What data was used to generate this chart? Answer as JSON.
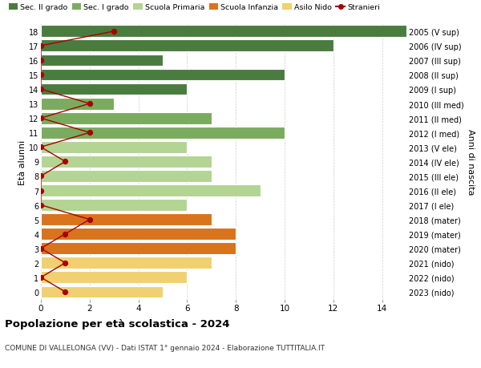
{
  "ages": [
    18,
    17,
    16,
    15,
    14,
    13,
    12,
    11,
    10,
    9,
    8,
    7,
    6,
    5,
    4,
    3,
    2,
    1,
    0
  ],
  "right_labels": [
    "2005 (V sup)",
    "2006 (IV sup)",
    "2007 (III sup)",
    "2008 (II sup)",
    "2009 (I sup)",
    "2010 (III med)",
    "2011 (II med)",
    "2012 (I med)",
    "2013 (V ele)",
    "2014 (IV ele)",
    "2015 (III ele)",
    "2016 (II ele)",
    "2017 (I ele)",
    "2018 (mater)",
    "2019 (mater)",
    "2020 (mater)",
    "2021 (nido)",
    "2022 (nido)",
    "2023 (nido)"
  ],
  "bar_values": [
    15,
    12,
    5,
    10,
    6,
    3,
    7,
    10,
    6,
    7,
    7,
    9,
    6,
    7,
    8,
    8,
    7,
    6,
    5
  ],
  "bar_colors": [
    "#4a7c3f",
    "#4a7c3f",
    "#4a7c3f",
    "#4a7c3f",
    "#4a7c3f",
    "#7aab5e",
    "#7aab5e",
    "#7aab5e",
    "#b3d492",
    "#b3d492",
    "#b3d492",
    "#b3d492",
    "#b3d492",
    "#d9731c",
    "#d9731c",
    "#d9731c",
    "#f0d070",
    "#f0d070",
    "#f0d070"
  ],
  "stranieri_x": [
    3,
    0,
    0,
    0,
    0,
    2,
    0,
    2,
    0,
    1,
    0,
    0,
    0,
    2,
    1,
    0,
    1,
    0,
    1
  ],
  "stranieri_color": "#aa0000",
  "legend_labels": [
    "Sec. II grado",
    "Sec. I grado",
    "Scuola Primaria",
    "Scuola Infanzia",
    "Asilo Nido",
    "Stranieri"
  ],
  "legend_colors": [
    "#4a7c3f",
    "#7aab5e",
    "#b3d492",
    "#d9731c",
    "#f0d070",
    "#aa0000"
  ],
  "ylabel_left": "Età alunni",
  "ylabel_right": "Anni di nascita",
  "title": "Popolazione per età scolastica - 2024",
  "subtitle": "COMUNE DI VALLELONGA (VV) - Dati ISTAT 1° gennaio 2024 - Elaborazione TUTTITALIA.IT",
  "xlim": [
    0,
    15
  ],
  "ylim_min": -0.55,
  "ylim_max": 18.55,
  "background_color": "#ffffff",
  "grid_color": "#cccccc",
  "bar_edge_color": "#ffffff",
  "bar_height": 0.82
}
